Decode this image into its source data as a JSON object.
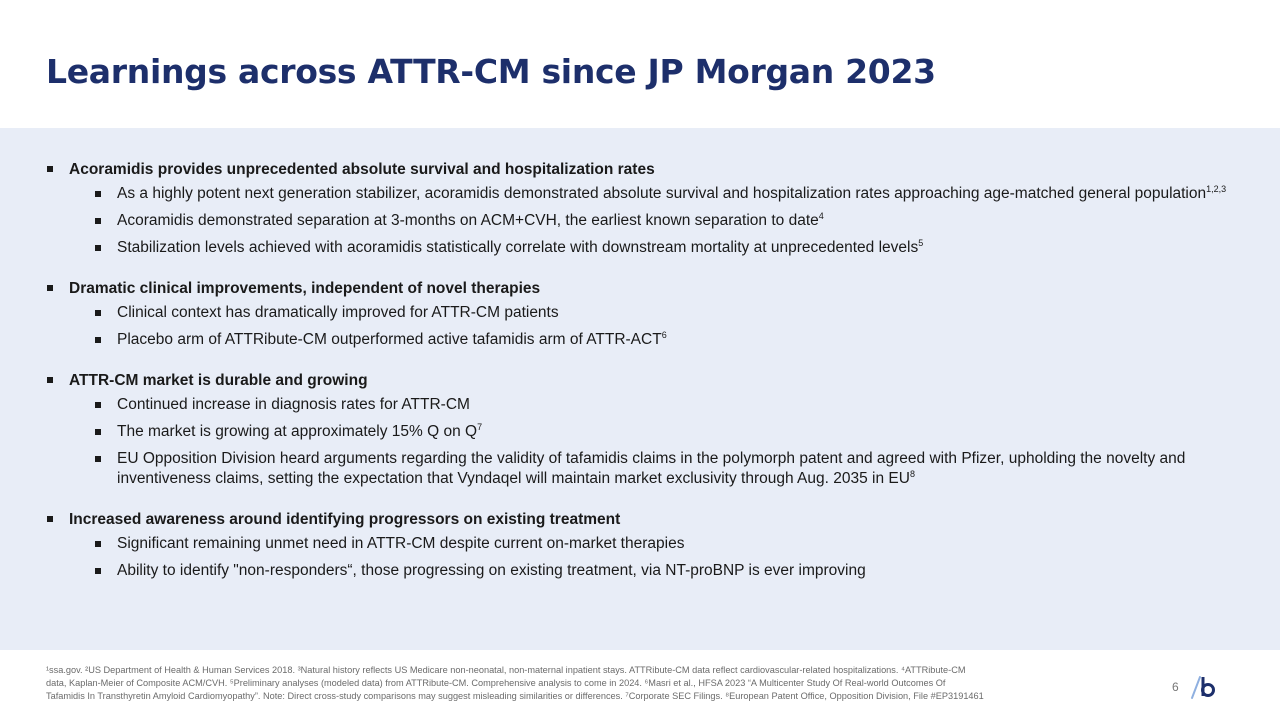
{
  "title": "Learnings across ATTR-CM since JP Morgan 2023",
  "sections": [
    {
      "heading": "Acoramidis provides unprecedented absolute survival and hospitalization rates",
      "items": [
        {
          "text": "As a highly potent next generation stabilizer, acoramidis demonstrated absolute survival and hospitalization rates approaching age-matched general population",
          "sup": "1,2,3"
        },
        {
          "text": "Acoramidis demonstrated separation at 3-months on ACM+CVH, the earliest known separation to date",
          "sup": "4"
        },
        {
          "text": "Stabilization levels achieved with acoramidis statistically correlate with downstream mortality at unprecedented levels",
          "sup": "5"
        }
      ]
    },
    {
      "heading": "Dramatic clinical improvements, independent of novel therapies",
      "items": [
        {
          "text": "Clinical context has dramatically improved for ATTR-CM patients",
          "sup": ""
        },
        {
          "text": "Placebo arm of ATTRibute-CM outperformed active tafamidis arm of ATTR-ACT",
          "sup": "6"
        }
      ]
    },
    {
      "heading": "ATTR-CM market is durable and growing",
      "items": [
        {
          "text": "Continued increase in diagnosis rates for ATTR-CM",
          "sup": ""
        },
        {
          "text": "The market is growing at approximately 15% Q on Q",
          "sup": "7"
        },
        {
          "text": "EU Opposition Division heard arguments regarding the validity of tafamidis claims in the polymorph patent and agreed with Pfizer, upholding the novelty and inventiveness claims, setting the expectation that Vyndaqel will maintain market exclusivity through Aug. 2035 in EU",
          "sup": "8"
        }
      ]
    },
    {
      "heading": "Increased awareness around identifying progressors on existing treatment",
      "items": [
        {
          "text": "Significant remaining unmet need in ATTR-CM despite current on-market therapies",
          "sup": ""
        },
        {
          "text": "Ability to identify \"non-responders“, those progressing on existing treatment, via NT-proBNP is ever improving",
          "sup": ""
        }
      ]
    }
  ],
  "footnotes": {
    "line1": "¹ssa.gov. ²US Department of Health & Human Services 2018. ³Natural history reflects US Medicare non-neonatal, non-maternal inpatient stays. ATTRibute-CM data reflect cardiovascular-related hospitalizations. ⁴ATTRibute-CM",
    "line2": "data, Kaplan-Meier of Composite ACM/CVH. ⁵Preliminary analyses (modeled data) from ATTRibute-CM.  Comprehensive analysis to come in 2024. ⁶Masri et al., HFSA 2023 “A Multicenter Study Of Real-world Outcomes Of",
    "line3": "Tafamidis In Transthyretin Amyloid Cardiomyopathy”. Note: Direct cross-study comparisons may suggest misleading similarities or differences. ⁷Corporate SEC Filings. ⁸European Patent Office, Opposition Division, File #EP3191461"
  },
  "page_number": "6",
  "colors": {
    "title": "#1d2f6b",
    "panel": "#e8edf7",
    "logo_slash": "#8fb0e0",
    "logo_b": "#1d2f6b"
  }
}
